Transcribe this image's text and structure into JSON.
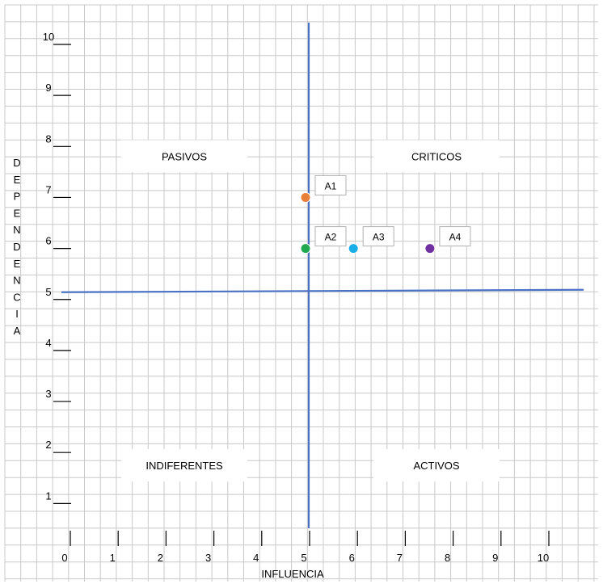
{
  "chart_data": {
    "type": "scatter",
    "xlabel": "INFLUENCIA",
    "ylabel": "DEPENDENCIA",
    "xlim": [
      0,
      10
    ],
    "ylim": [
      0,
      10
    ],
    "x_ticks": [
      0,
      1,
      2,
      3,
      4,
      5,
      6,
      7,
      8,
      9,
      10
    ],
    "y_ticks": [
      1,
      2,
      3,
      4,
      5,
      6,
      7,
      8,
      9,
      10
    ],
    "grid": true,
    "divider_lines": {
      "x": 5,
      "y": 5,
      "color": "#4a72c4"
    },
    "quadrants": [
      {
        "label": "PASIVOS",
        "x": 2.5,
        "y": 8
      },
      {
        "label": "CRITICOS",
        "x": 7.5,
        "y": 8
      },
      {
        "label": "INDIFERENTES",
        "x": 2.5,
        "y": 2
      },
      {
        "label": "ACTIVOS",
        "x": 7.5,
        "y": 2
      }
    ],
    "points": [
      {
        "label": "A1",
        "x": 5.0,
        "y": 7.0,
        "color": "#e8803a"
      },
      {
        "label": "A2",
        "x": 5.0,
        "y": 6.0,
        "color": "#21a94f"
      },
      {
        "label": "A3",
        "x": 6.0,
        "y": 6.0,
        "color": "#19aee8"
      },
      {
        "label": "A4",
        "x": 7.6,
        "y": 6.0,
        "color": "#7030a0"
      }
    ]
  }
}
